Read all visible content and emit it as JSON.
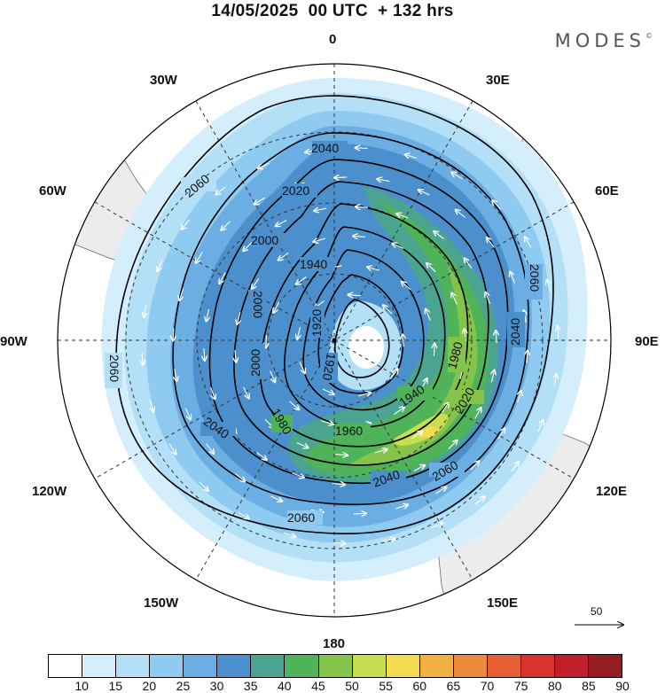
{
  "title": "14/05/2025  00 UTC  + 132 hrs",
  "brand": "MODES",
  "brand_mark": "©",
  "longitude_labels": {
    "lon_0": "0",
    "lon_30e": "30E",
    "lon_60e": "60E",
    "lon_90e": "90E",
    "lon_120e": "120E",
    "lon_150e": "150E",
    "lon_180": "180",
    "lon_150w": "150W",
    "lon_120w": "120W",
    "lon_90w": "90W",
    "lon_60w": "60W",
    "lon_30w": "30W"
  },
  "contour_labels": [
    "2060",
    "2060",
    "2060",
    "2060",
    "2040",
    "2040",
    "2040",
    "2040",
    "2020",
    "2020",
    "2000",
    "2000",
    "2000",
    "1980",
    "1980",
    "1960",
    "1940",
    "1940",
    "1920",
    "1920"
  ],
  "reference_vector": {
    "label": "50"
  },
  "colorbar": {
    "labels": [
      "10",
      "15",
      "20",
      "25",
      "30",
      "35",
      "40",
      "45",
      "50",
      "55",
      "60",
      "65",
      "70",
      "75",
      "80",
      "85",
      "90"
    ],
    "colors": [
      "#ffffff",
      "#d4eefb",
      "#b3e0f7",
      "#8fcaf0",
      "#6aaee3",
      "#4b90cc",
      "#4ba48f",
      "#4fb35a",
      "#84c44b",
      "#c8dd50",
      "#f3dc52",
      "#f1b145",
      "#ec8a3b",
      "#e65e34",
      "#d8332e",
      "#c11f2b",
      "#961c24"
    ]
  }
}
